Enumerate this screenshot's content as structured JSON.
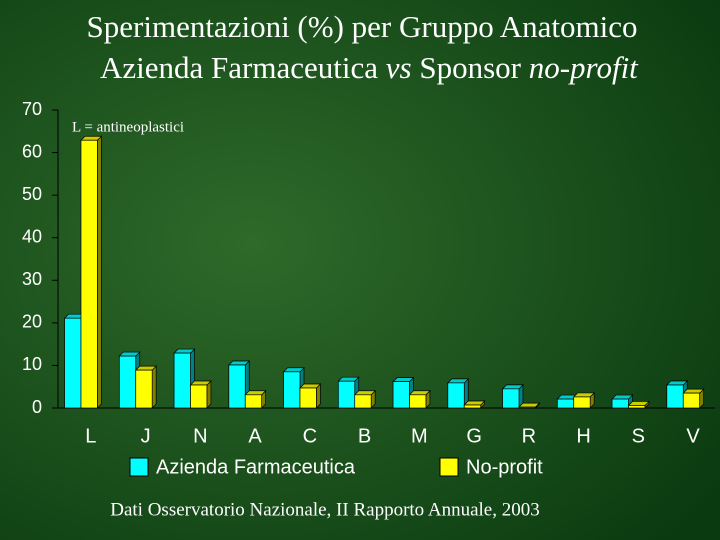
{
  "chart_data": {
    "type": "bar",
    "title": [
      "Sperimentazioni (%) per Gruppo Anatomico",
      [
        "Azienda Farmaceutica ",
        "vs",
        " Sponsor ",
        "no-profit"
      ]
    ],
    "annotation": "L = antineoplastici",
    "source": "Dati Osservatorio Nazionale, II Rapporto Annuale, 2003",
    "categories": [
      "L",
      "J",
      "N",
      "A",
      "C",
      "B",
      "M",
      "G",
      "R",
      "H",
      "S",
      "V"
    ],
    "series": [
      {
        "name": "Azienda Farmaceutica",
        "color": "#00ffff",
        "values": [
          21.1,
          12.2,
          12.9,
          10.1,
          8.5,
          6.3,
          6.2,
          5.9,
          4.5,
          2.1,
          2.1,
          5.4
        ]
      },
      {
        "name": "No-profit",
        "color": "#ffff00",
        "values": [
          62.9,
          8.9,
          5.4,
          3.1,
          4.7,
          3.1,
          3.1,
          0.7,
          0.2,
          2.6,
          0.6,
          3.5
        ]
      }
    ],
    "ylim": [
      0,
      70
    ],
    "yticks": [
      0,
      10,
      20,
      30,
      40,
      50,
      60,
      70
    ],
    "grid": false
  }
}
